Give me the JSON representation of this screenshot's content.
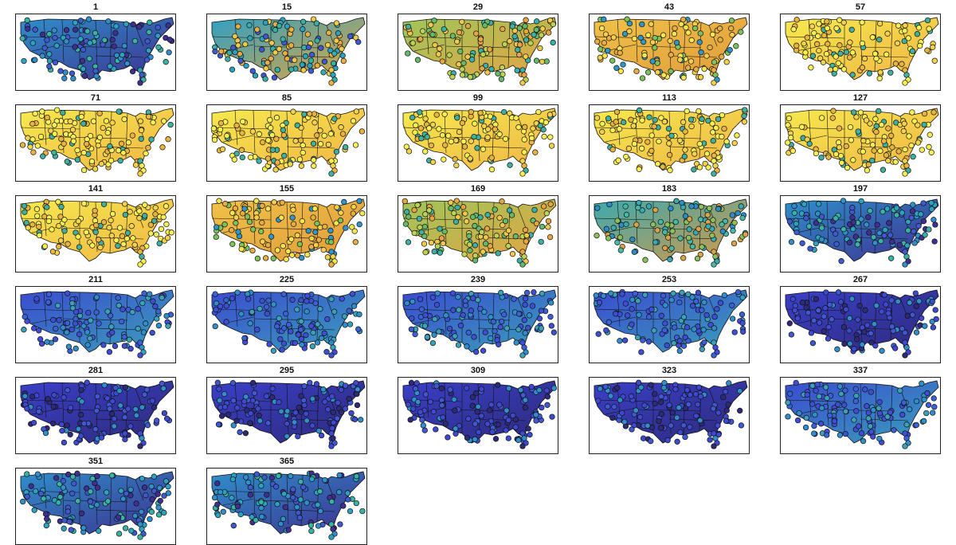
{
  "figure": {
    "panels": [
      {
        "label": "1",
        "tone": "cool"
      },
      {
        "label": "15",
        "tone": "cool-warm"
      },
      {
        "label": "29",
        "tone": "mixed"
      },
      {
        "label": "43",
        "tone": "warm"
      },
      {
        "label": "57",
        "tone": "hot"
      },
      {
        "label": "71",
        "tone": "hot"
      },
      {
        "label": "85",
        "tone": "hot"
      },
      {
        "label": "99",
        "tone": "hot"
      },
      {
        "label": "113",
        "tone": "hot"
      },
      {
        "label": "127",
        "tone": "hot"
      },
      {
        "label": "141",
        "tone": "hot"
      },
      {
        "label": "155",
        "tone": "warm"
      },
      {
        "label": "169",
        "tone": "mixed"
      },
      {
        "label": "183",
        "tone": "mid"
      },
      {
        "label": "197",
        "tone": "cool"
      },
      {
        "label": "211",
        "tone": "cold"
      },
      {
        "label": "225",
        "tone": "cold"
      },
      {
        "label": "239",
        "tone": "cold"
      },
      {
        "label": "253",
        "tone": "cold"
      },
      {
        "label": "267",
        "tone": "colder"
      },
      {
        "label": "281",
        "tone": "colder"
      },
      {
        "label": "295",
        "tone": "colder"
      },
      {
        "label": "309",
        "tone": "colder"
      },
      {
        "label": "323",
        "tone": "colder"
      },
      {
        "label": "337",
        "tone": "cold"
      },
      {
        "label": "351",
        "tone": "cool"
      },
      {
        "label": "365",
        "tone": "cool"
      }
    ]
  },
  "colormap": {
    "cold": "#3d2f8f",
    "colder": "#34308a",
    "cool": "#2a8fc8",
    "mid": "#3cb6a0",
    "mixed": "#8dc05a",
    "warm": "#e8b845",
    "hot": "#f3e84c",
    "station_stroke": "#111111",
    "border_stroke": "#111111"
  }
}
